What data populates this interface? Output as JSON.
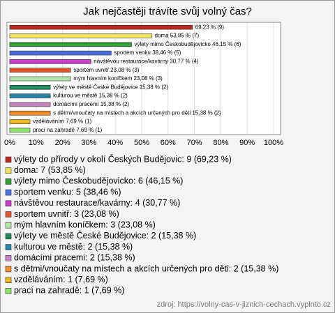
{
  "chart_data": {
    "type": "hbar",
    "title": "Jak nejčastěji trávíte svůj volný čas?",
    "values": [
      69.23,
      53.85,
      46.15,
      38.46,
      30.77,
      23.08,
      23.08,
      15.38,
      15.38,
      15.38,
      15.38,
      7.69,
      7.69
    ],
    "value_labels": [
      "69,23 % (9)",
      "doma 53,85 % (7)",
      "výlety mimo Českobudějovicko 46,15 % (6)",
      "sportem venku 38,46 % (5)",
      "návštěvou restaurace/kavárny 30,77 % (4)",
      "sportem uvnitř 23,08 % (3)",
      "mým hlavním koníčkem 23,08 % (3)",
      "výlety ve městě České Budějovice 15,38 % (2)",
      "kulturou ve městě 15,38 % (2)",
      "domácími pracemi 15,38 % (2)",
      "s dětmi/vnoučaty na místech a akcích určených pro děti 15,38 % (2)",
      "vzděláváním 7,69 % (1)",
      "prací na zahradě 7,69 % (1)"
    ],
    "legend_labels": [
      "výlety do přírody v okolí Českých Budějovic: 9 (69,23 %)",
      "doma: 7 (53,85 %)",
      "výlety mimo Českobudějovicko: 6 (46,15 %)",
      "sportem venku: 5 (38,46 %)",
      "návštěvou restaurace/kavárny: 4 (30,77 %)",
      "sportem uvnitř: 3 (23,08 %)",
      "mým hlavním koníčkem: 3 (23,08 %)",
      "výlety ve městě České Budějovice: 2 (15,38 %)",
      "kulturou ve městě: 2 (15,38 %)",
      "domácími pracemi: 2 (15,38 %)",
      "s dětmi/vnoučaty na místech a akcích určených pro děti: 2 (15,38 %)",
      "vzděláváním: 1 (7,69 %)",
      "prací na zahradě: 1 (7,69 %)"
    ],
    "colors": [
      "#b8281e",
      "#f2e35a",
      "#2f9e35",
      "#4a6fe0",
      "#c93cc9",
      "#e0552a",
      "#b0e6a6",
      "#1f8a5e",
      "#2786a6",
      "#c584c0",
      "#ee8a2a",
      "#f0b820",
      "#8ee46a"
    ],
    "xlim": [
      0,
      100
    ],
    "xticks": [
      {
        "value": 0,
        "label": "0%"
      },
      {
        "value": 10,
        "label": "10%"
      },
      {
        "value": 20,
        "label": "20%"
      },
      {
        "value": 30,
        "label": "30%"
      },
      {
        "value": 40,
        "label": "40%"
      },
      {
        "value": 50,
        "label": "50%"
      },
      {
        "value": 60,
        "label": "60%"
      },
      {
        "value": 70,
        "label": "70%"
      },
      {
        "value": 80,
        "label": "80%"
      },
      {
        "value": 90,
        "label": "90%"
      },
      {
        "value": 100,
        "label": "100%"
      }
    ],
    "grid": true,
    "source": "zdroj: https://volny-cas-v-jiznich-cechach.vyplnto.cz"
  }
}
